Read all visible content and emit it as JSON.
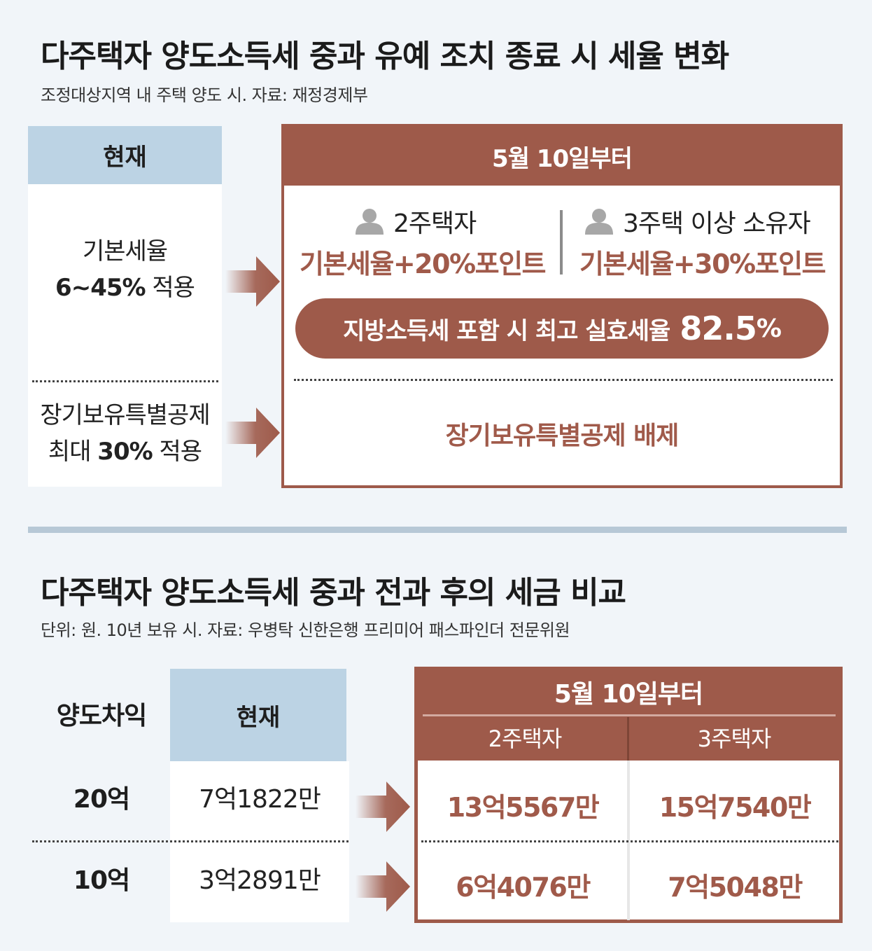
{
  "section1": {
    "title": "다주택자 양도소득세 중과 유예 조치 종료 시 세율 변화",
    "subtitle": "조정대상지역 내 주택 양도 시. 자료: 재정경제부",
    "current": {
      "header": "현재",
      "rate_line1": "기본세율",
      "rate_line2_bold": "6~45%",
      "rate_line2_rest": " 적용",
      "deduction_line1": "장기보유특별공제",
      "deduction_line2_pre": "최대 ",
      "deduction_line2_bold": "30%",
      "deduction_line2_rest": " 적용"
    },
    "after": {
      "header": "5월 10일부터",
      "two_homes_label": "2주택자",
      "two_homes_rate": "기본세율+20%포인트",
      "three_homes_label": "3주택 이상 소유자",
      "three_homes_rate": "기본세율+30%포인트",
      "max_rate_text": "지방소득세 포함 시 최고 실효세율",
      "max_rate_value": "82.5",
      "max_rate_unit": "%",
      "deduction": "장기보유특별공제 배제"
    }
  },
  "section2": {
    "title": "다주택자 양도소득세 중과 전과 후의 세금 비교",
    "subtitle": "단위: 원. 10년 보유 시. 자료: 우병탁 신한은행 프리미어 패스파인더 전문위원",
    "row_header": "양도차익",
    "current_header": "현재",
    "after_header": "5월 10일부터",
    "col_two": "2주택자",
    "col_three": "3주택자",
    "rows": [
      {
        "gain": "20억",
        "current": "7억1822만",
        "two": "13억5567만",
        "three": "15억7540만"
      },
      {
        "gain": "10억",
        "current": "3억2891만",
        "two": "6억4076만",
        "three": "7억5048만"
      }
    ]
  },
  "colors": {
    "accent": "#9e5a4a",
    "accent_text": "#a05a4a",
    "current_header_bg": "#bcd3e4",
    "page_bg": "#f1f5f9"
  },
  "icons": [
    "person-icon",
    "arrow-right-icon"
  ]
}
